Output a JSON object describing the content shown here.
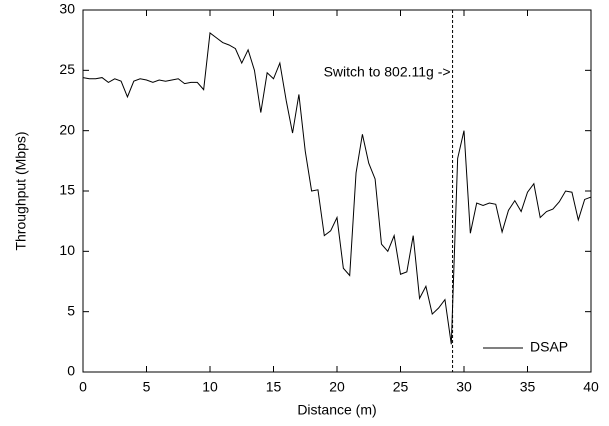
{
  "chart_data": {
    "type": "line",
    "xlabel": "Distance (m)",
    "ylabel": "Throughput (Mbps)",
    "x": [
      0,
      0.5,
      1,
      1.5,
      2,
      2.5,
      3,
      3.5,
      4,
      4.5,
      5,
      5.5,
      6,
      6.5,
      7,
      7.5,
      8,
      8.5,
      9,
      9.5,
      10,
      10.5,
      11,
      11.5,
      12,
      12.5,
      13,
      13.5,
      14,
      14.5,
      15,
      15.5,
      16,
      16.5,
      17,
      17.5,
      18,
      18.5,
      19,
      19.5,
      20,
      20.5,
      21,
      21.5,
      22,
      22.5,
      23,
      23.5,
      24,
      24.5,
      25,
      25.5,
      26,
      26.5,
      27,
      27.5,
      28,
      28.5,
      29,
      29.5,
      30,
      30.5,
      31,
      31.5,
      32,
      32.5,
      33,
      33.5,
      34,
      34.5,
      35,
      35.5,
      36,
      36.5,
      37,
      37.5,
      38,
      38.5,
      39,
      39.5,
      40
    ],
    "series": [
      {
        "name": "DSAP",
        "color": "#000000",
        "values": [
          24.4,
          24.3,
          24.3,
          24.4,
          24.0,
          24.3,
          24.1,
          22.8,
          24.1,
          24.3,
          24.2,
          24.0,
          24.2,
          24.1,
          24.2,
          24.3,
          23.9,
          24.0,
          24.0,
          23.4,
          28.1,
          27.7,
          27.3,
          27.1,
          26.8,
          25.6,
          26.7,
          25.0,
          21.5,
          24.8,
          24.3,
          25.6,
          22.5,
          19.8,
          23.0,
          18.3,
          15.0,
          15.1,
          11.3,
          11.7,
          12.8,
          8.6,
          8.0,
          16.5,
          19.7,
          17.3,
          16.0,
          10.6,
          10.0,
          11.3,
          8.1,
          8.3,
          11.3,
          6.1,
          7.1,
          4.8,
          5.3,
          6.0,
          2.3,
          17.7,
          20.0,
          11.5,
          14.0,
          13.8,
          14.0,
          13.9,
          11.6,
          13.4,
          14.2,
          13.3,
          14.9,
          15.6,
          12.8,
          13.3,
          13.5,
          14.1,
          15.0,
          14.9,
          12.6,
          14.3,
          14.5
        ]
      }
    ],
    "vline": 29.1,
    "annotation": "Switch to 802.11g ->",
    "xlim": [
      0,
      40
    ],
    "xticks": [
      0,
      5,
      10,
      15,
      20,
      25,
      30,
      35,
      40
    ],
    "ylim": [
      0,
      30
    ],
    "yticks": [
      0,
      5,
      10,
      15,
      20,
      25,
      30
    ],
    "legend": "bottom right"
  }
}
